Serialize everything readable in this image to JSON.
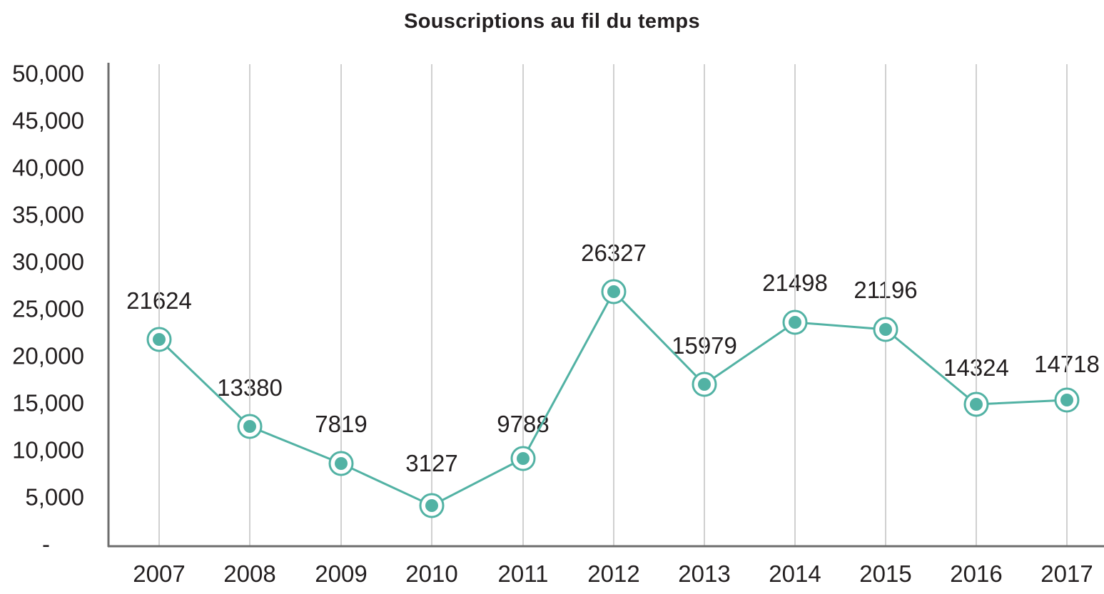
{
  "chart_data": {
    "type": "line",
    "title": "Souscriptions au fil du temps",
    "xlabel": "",
    "ylabel": "",
    "categories": [
      "2007",
      "2008",
      "2009",
      "2010",
      "2011",
      "2012",
      "2013",
      "2014",
      "2015",
      "2016",
      "2017"
    ],
    "series": [
      {
        "name": "Souscriptions",
        "values": [
          21624,
          13380,
          7819,
          3127,
          9788,
          26327,
          15979,
          21498,
          21196,
          14324,
          14718
        ],
        "color": "#52b2a4"
      }
    ],
    "data_labels": [
      "21624",
      "13380",
      "7819",
      "3127",
      "9788",
      "26327",
      "15979",
      "21498",
      "21196",
      "14324",
      "14718"
    ],
    "y_ticks": [
      "50,000",
      "45,000",
      "40,000",
      "35,000",
      "30,000",
      "25,000",
      "20,000",
      "15,000",
      "10,000",
      "5,000",
      "-"
    ],
    "ylim": [
      0,
      50000
    ],
    "grid": {
      "vertical": true,
      "horizontal": false
    },
    "legend": "none",
    "colors": {
      "line": "#52b2a4",
      "grid": "#d0d0d0",
      "axis": "#6d6d6d",
      "text": "#231f20"
    }
  }
}
